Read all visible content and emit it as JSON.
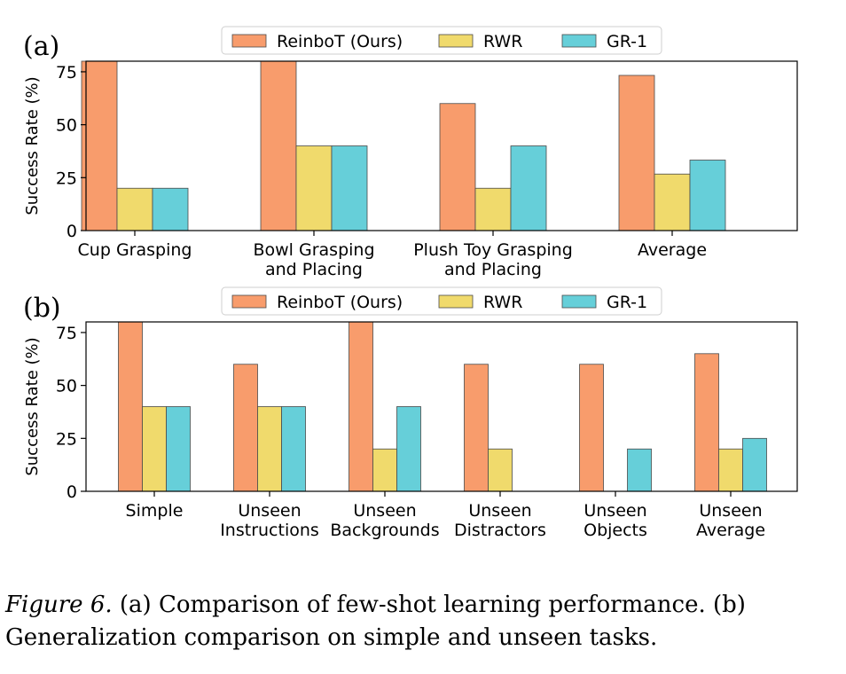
{
  "chart_data": [
    {
      "type": "bar",
      "panel_label": "(a)",
      "ylabel": "Success Rate (%)",
      "ylim": [
        0,
        80
      ],
      "yticks": [
        0,
        25,
        50,
        75
      ],
      "grid": false,
      "legend_position": "top-center",
      "categories": [
        [
          "Cup Grasping"
        ],
        [
          "Bowl Grasping",
          "and Placing"
        ],
        [
          "Plush Toy Grasping",
          "and Placing"
        ],
        [
          "Average"
        ]
      ],
      "series": [
        {
          "name": "ReinboT (Ours)",
          "color": "#F89C6C",
          "values": [
            80,
            80,
            60,
            73.3
          ]
        },
        {
          "name": "RWR",
          "color": "#F0DA6C",
          "values": [
            20,
            40,
            20,
            26.7
          ]
        },
        {
          "name": "GR-1",
          "color": "#66CFD9",
          "values": [
            20,
            40,
            40,
            33.3
          ]
        }
      ]
    },
    {
      "type": "bar",
      "panel_label": "(b)",
      "ylabel": "Success Rate (%)",
      "ylim": [
        0,
        80
      ],
      "yticks": [
        0,
        25,
        50,
        75
      ],
      "grid": false,
      "legend_position": "top-center",
      "categories": [
        [
          "Simple"
        ],
        [
          "Unseen",
          "Instructions"
        ],
        [
          "Unseen",
          "Backgrounds"
        ],
        [
          "Unseen",
          "Distractors"
        ],
        [
          "Unseen",
          "Objects"
        ],
        [
          "Unseen",
          "Average"
        ]
      ],
      "series": [
        {
          "name": "ReinboT (Ours)",
          "color": "#F89C6C",
          "values": [
            80,
            60,
            80,
            60,
            60,
            65
          ]
        },
        {
          "name": "RWR",
          "color": "#F0DA6C",
          "values": [
            40,
            40,
            20,
            20,
            0,
            20
          ]
        },
        {
          "name": "GR-1",
          "color": "#66CFD9",
          "values": [
            40,
            40,
            40,
            0,
            20,
            25
          ]
        }
      ]
    }
  ],
  "caption": {
    "label": "Figure 6.",
    "text": "(a) Comparison of few-shot learning performance. (b) Generalization comparison on simple and unseen tasks."
  }
}
